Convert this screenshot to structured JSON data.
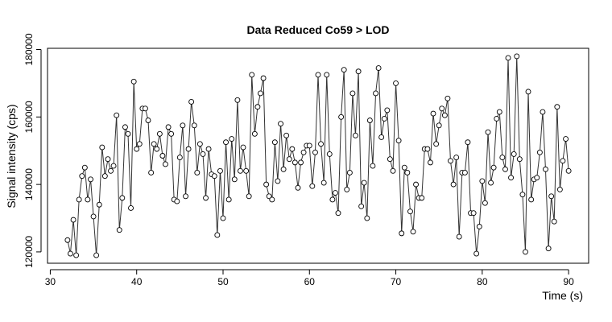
{
  "chart_data": {
    "type": "line",
    "title": "Data Reduced Co59 > LOD",
    "x_label": "Time (s)",
    "y_label": "Signal intensity (cps)",
    "x": [
      32,
      32.33,
      32.67,
      33,
      33.33,
      33.67,
      34,
      34.33,
      34.67,
      35,
      35.33,
      35.67,
      36,
      36.33,
      36.67,
      37,
      37.33,
      37.67,
      38,
      38.33,
      38.67,
      39,
      39.33,
      39.67,
      40,
      40.33,
      40.67,
      41,
      41.33,
      41.67,
      42,
      42.33,
      42.67,
      43,
      43.33,
      43.67,
      44,
      44.33,
      44.67,
      45,
      45.33,
      45.67,
      46,
      46.33,
      46.67,
      47,
      47.33,
      47.67,
      48,
      48.33,
      48.67,
      49,
      49.33,
      49.67,
      50,
      50.33,
      50.67,
      51,
      51.33,
      51.67,
      52,
      52.33,
      52.67,
      53,
      53.33,
      53.67,
      54,
      54.33,
      54.67,
      55,
      55.33,
      55.67,
      56,
      56.33,
      56.67,
      57,
      57.33,
      57.67,
      58,
      58.33,
      58.67,
      59,
      59.33,
      59.67,
      60,
      60.33,
      60.67,
      61,
      61.33,
      61.67,
      62,
      62.33,
      62.67,
      63,
      63.33,
      63.67,
      64,
      64.33,
      64.67,
      65,
      65.33,
      65.67,
      66,
      66.33,
      66.67,
      67,
      67.33,
      67.67,
      68,
      68.33,
      68.67,
      69,
      69.33,
      69.67,
      70,
      70.33,
      70.67,
      71,
      71.33,
      71.67,
      72,
      72.33,
      72.67,
      73,
      73.33,
      73.67,
      74,
      74.33,
      74.67,
      75,
      75.33,
      75.67,
      76,
      76.33,
      76.67,
      77,
      77.33,
      77.67,
      78,
      78.33,
      78.67,
      79,
      79.33,
      79.67,
      80,
      80.33,
      80.67,
      81,
      81.33,
      81.67,
      82,
      82.33,
      82.67,
      83,
      83.33,
      83.67,
      84,
      84.33,
      84.67,
      85,
      85.33,
      85.67,
      86,
      86.33,
      86.67,
      87,
      87.33,
      87.67,
      88,
      88.33,
      88.67,
      89,
      89.33,
      89.67,
      90
    ],
    "series": [
      {
        "color": "#333333",
        "values": [
          123500,
          119500,
          129500,
          119000,
          135500,
          142500,
          145000,
          135500,
          141500,
          130500,
          119000,
          134000,
          151000,
          142500,
          147500,
          144000,
          145500,
          160500,
          126500,
          136000,
          157000,
          155000,
          133000,
          170500,
          150500,
          152000,
          162500,
          162500,
          159000,
          143500,
          152000,
          150500,
          155000,
          148500,
          146000,
          157000,
          155000,
          135500,
          135000,
          148000,
          157500,
          136500,
          150500,
          164500,
          157500,
          143500,
          152000,
          149000,
          136000,
          150500,
          143000,
          142500,
          125000,
          144000,
          130000,
          152500,
          135500,
          153500,
          141500,
          165000,
          144000,
          151000,
          144000,
          136500,
          172500,
          155000,
          163000,
          167000,
          171500,
          140000,
          136500,
          135500,
          152500,
          141000,
          158000,
          144500,
          154500,
          147500,
          150500,
          146500,
          139000,
          146500,
          149500,
          151500,
          151500,
          139500,
          149500,
          172500,
          152000,
          140500,
          172500,
          149000,
          135500,
          137500,
          131500,
          160000,
          174000,
          138500,
          143500,
          167000,
          154500,
          173500,
          133500,
          140500,
          130000,
          159000,
          145500,
          167000,
          174500,
          154000,
          159500,
          162000,
          147500,
          144000,
          170000,
          153000,
          125500,
          145000,
          143500,
          132000,
          126000,
          140000,
          136000,
          136000,
          150500,
          150500,
          146500,
          161000,
          152000,
          157500,
          162500,
          160500,
          165500,
          147000,
          140000,
          148000,
          124500,
          143500,
          143500,
          152500,
          131500,
          131500,
          119500,
          127500,
          141000,
          134500,
          155500,
          140500,
          145000,
          159500,
          161500,
          148000,
          144500,
          177500,
          142000,
          149000,
          178000,
          147500,
          137000,
          120000,
          167500,
          135500,
          141500,
          142000,
          149500,
          161500,
          144500,
          121000,
          136500,
          129000,
          163000,
          138500,
          147000,
          153500,
          144000
        ]
      }
    ],
    "xlim": [
      29.68,
      92.32
    ],
    "ylim": [
      116640,
      180360
    ],
    "xticks": [
      30,
      40,
      50,
      60,
      70,
      80,
      90
    ],
    "yticks": [
      120000,
      140000,
      160000,
      180000
    ]
  }
}
